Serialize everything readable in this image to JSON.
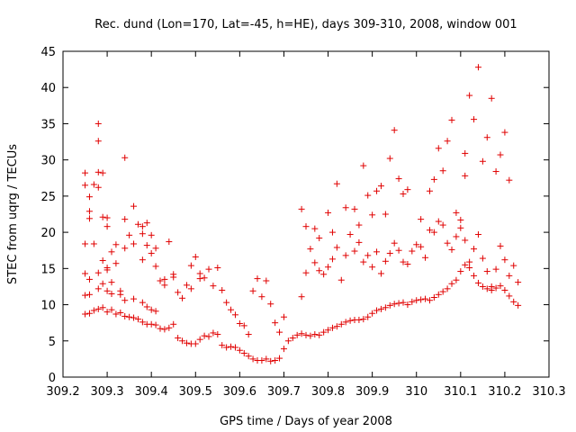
{
  "chart_data": {
    "type": "scatter",
    "title": "Rec. dund (Lon=170, Lat=-45, h=HE), days 309-310, 2008, window 001",
    "xlabel": "GPS time / Days of year 2008",
    "ylabel": "STEC from uqrg / TECUs",
    "xlim": [
      309.2,
      310.3
    ],
    "ylim": [
      0,
      45
    ],
    "x_ticks": [
      "309.2",
      "309.3",
      "309.4",
      "309.5",
      "309.6",
      "309.7",
      "309.8",
      "309.9",
      "310",
      "310.1",
      "310.2",
      "310.3"
    ],
    "y_ticks": [
      "0",
      "5",
      "10",
      "15",
      "20",
      "25",
      "30",
      "35",
      "40",
      "45"
    ],
    "grid": false,
    "legend": "none",
    "marker": "plus",
    "color": "#e00000",
    "series": [
      {
        "x": [
          309.25,
          309.25,
          309.25,
          309.26,
          309.26,
          309.26,
          309.27,
          309.28,
          309.28,
          309.28,
          309.29,
          309.29,
          309.29,
          309.3,
          309.3,
          309.3,
          309.31,
          309.31,
          309.31,
          309.32,
          309.33,
          309.33,
          309.34,
          309.34,
          309.35,
          309.36,
          309.36,
          309.37,
          309.38,
          309.38,
          309.39,
          309.39,
          309.4,
          309.4,
          309.41,
          309.41,
          309.42,
          309.43,
          309.44,
          309.45,
          309.46,
          309.47,
          309.48,
          309.49,
          309.5,
          309.51,
          309.52,
          309.53,
          309.54,
          309.55,
          309.56,
          309.57,
          309.58,
          309.59,
          309.6,
          309.61,
          309.62,
          309.63,
          309.64,
          309.65,
          309.66,
          309.67,
          309.68,
          309.69,
          309.7,
          309.71,
          309.72,
          309.73,
          309.74,
          309.75,
          309.76,
          309.77,
          309.78,
          309.79,
          309.8,
          309.81,
          309.82,
          309.83,
          309.84,
          309.85,
          309.86,
          309.87,
          309.88,
          309.89,
          309.9,
          309.91,
          309.92,
          309.93,
          309.94,
          309.95,
          309.96,
          309.97,
          309.98,
          309.99,
          310.0,
          310.01,
          310.02,
          310.03,
          310.04,
          310.05,
          310.06,
          310.07,
          310.08,
          310.09,
          310.1,
          310.11,
          310.12,
          310.13,
          310.14,
          310.15,
          310.16,
          310.17,
          310.18,
          310.19,
          310.2,
          310.21,
          310.22,
          310.23
        ],
        "y": [
          8.7,
          11.3,
          14.3,
          8.8,
          11.4,
          13.5,
          9.2,
          9.4,
          12.2,
          14.4,
          9.6,
          12.9,
          16.1,
          9.0,
          11.9,
          15.1,
          9.3,
          11.5,
          13.1,
          8.7,
          8.9,
          11.9,
          8.4,
          10.6,
          8.3,
          8.2,
          10.8,
          8.0,
          7.6,
          10.3,
          7.3,
          9.7,
          7.3,
          9.3,
          7.2,
          9.1,
          6.7,
          6.6,
          6.8,
          7.3,
          5.4,
          5.0,
          4.7,
          4.6,
          4.6,
          5.2,
          5.7,
          5.6,
          6.1,
          5.9,
          4.4,
          4.1,
          4.2,
          4.1,
          3.7,
          3.3,
          2.9,
          2.5,
          2.3,
          2.3,
          2.5,
          2.2,
          2.3,
          2.6,
          3.9,
          5.0,
          5.4,
          5.8,
          6.0,
          5.8,
          5.7,
          5.9,
          5.8,
          6.2,
          6.5,
          6.8,
          7.0,
          7.3,
          7.6,
          7.8,
          7.9,
          7.9,
          8.0,
          8.3,
          8.8,
          9.2,
          9.4,
          9.6,
          9.9,
          10.1,
          10.2,
          10.3,
          10.0,
          10.4,
          10.6,
          10.7,
          10.8,
          10.6,
          11.0,
          11.4,
          11.8,
          12.2,
          12.9,
          13.4,
          14.6,
          15.5,
          15.1,
          14.0,
          13.0,
          12.5,
          12.2,
          12.0,
          12.3,
          12.6,
          12.0,
          11.2,
          10.4,
          9.9
        ]
      },
      {
        "x": [
          309.25,
          309.25,
          309.26,
          309.26,
          309.27,
          309.27,
          309.28,
          309.28,
          309.29,
          309.3,
          309.3,
          309.31,
          309.32,
          309.32,
          309.33,
          309.34,
          309.34,
          309.35,
          309.36,
          309.37,
          309.38,
          309.38,
          309.39,
          309.4,
          309.41,
          309.42,
          309.43,
          309.44,
          309.45,
          309.46,
          309.47,
          309.48,
          309.49,
          309.5,
          309.51,
          309.52,
          309.53,
          309.54,
          309.55,
          309.56,
          309.57,
          309.58,
          309.59,
          309.6,
          309.61,
          309.62,
          309.63,
          309.64,
          309.65,
          309.66,
          309.67,
          309.68,
          309.69,
          309.7,
          309.74,
          309.75,
          309.76,
          309.77,
          309.78,
          309.79,
          309.8,
          309.81,
          309.82,
          309.83,
          309.84,
          309.85,
          309.86,
          309.87,
          309.88,
          309.89,
          309.9,
          309.91,
          309.92,
          309.93,
          309.94,
          309.95,
          309.96,
          309.97,
          309.98,
          309.99,
          310.0,
          310.01,
          310.02,
          310.03,
          310.04,
          310.05,
          310.06,
          310.07,
          310.08,
          310.09,
          310.1,
          310.11,
          310.12,
          310.13,
          310.14,
          310.15,
          310.16,
          310.17,
          310.18,
          310.19,
          310.2,
          310.21,
          310.22,
          310.23
        ],
        "y": [
          18.4,
          26.5,
          21.9,
          24.9,
          26.6,
          18.4,
          28.3,
          32.6,
          22.1,
          14.8,
          20.8,
          17.3,
          15.7,
          18.3,
          11.4,
          17.8,
          21.8,
          19.6,
          18.4,
          21.1,
          16.2,
          20.8,
          18.2,
          17.1,
          15.3,
          13.3,
          12.7,
          18.7,
          14.2,
          11.7,
          10.9,
          12.7,
          15.4,
          16.6,
          14.3,
          13.7,
          14.9,
          12.6,
          15.1,
          12.0,
          10.3,
          9.3,
          8.6,
          7.4,
          7.1,
          5.9,
          11.9,
          13.6,
          11.1,
          13.3,
          10.1,
          7.5,
          6.2,
          8.3,
          11.1,
          14.4,
          17.7,
          15.8,
          14.7,
          14.2,
          15.2,
          16.3,
          17.9,
          13.4,
          16.8,
          19.7,
          17.4,
          18.6,
          15.9,
          16.8,
          15.2,
          17.3,
          14.3,
          16.0,
          17.1,
          18.5,
          17.5,
          15.9,
          15.6,
          17.4,
          18.3,
          18.0,
          16.5,
          20.3,
          20.0,
          21.5,
          21.0,
          18.5,
          17.6,
          19.4,
          20.6,
          18.9,
          15.9,
          17.7,
          19.7,
          16.4,
          14.6,
          12.5,
          14.9,
          18.1,
          16.2,
          14.0,
          15.4,
          13.1
        ]
      },
      {
        "x": [
          309.25,
          309.26,
          309.28,
          309.28,
          309.29,
          309.3,
          309.34,
          309.36,
          309.38,
          309.39,
          309.4,
          309.41,
          309.43,
          309.45,
          309.49,
          309.51,
          309.74,
          309.75,
          309.77,
          309.78,
          309.8,
          309.81,
          309.82,
          309.84,
          309.86,
          309.87,
          309.88,
          309.89,
          309.9,
          309.91,
          309.92,
          309.93,
          309.94,
          309.95,
          309.96,
          309.97,
          309.98,
          310.01,
          310.03,
          310.04,
          310.05,
          310.06,
          310.07,
          310.08,
          310.09,
          310.1,
          310.11,
          310.11,
          310.12,
          310.13,
          310.14,
          310.15,
          310.16,
          310.17,
          310.18,
          310.19,
          310.2,
          310.21
        ],
        "y": [
          28.2,
          22.9,
          35.0,
          26.2,
          28.2,
          22.0,
          30.3,
          23.6,
          19.8,
          21.3,
          19.6,
          17.8,
          13.5,
          13.8,
          12.2,
          13.6,
          23.2,
          20.8,
          20.5,
          19.2,
          22.7,
          20.0,
          26.7,
          23.4,
          23.2,
          21.0,
          29.2,
          25.1,
          22.4,
          25.7,
          26.4,
          22.5,
          30.2,
          34.1,
          27.4,
          25.3,
          25.9,
          21.8,
          25.7,
          27.3,
          31.6,
          28.5,
          32.6,
          35.5,
          22.7,
          21.7,
          27.8,
          30.9,
          38.9,
          35.6,
          42.8,
          29.8,
          33.1,
          38.5,
          28.4,
          30.7,
          33.8,
          27.2
        ]
      }
    ]
  }
}
